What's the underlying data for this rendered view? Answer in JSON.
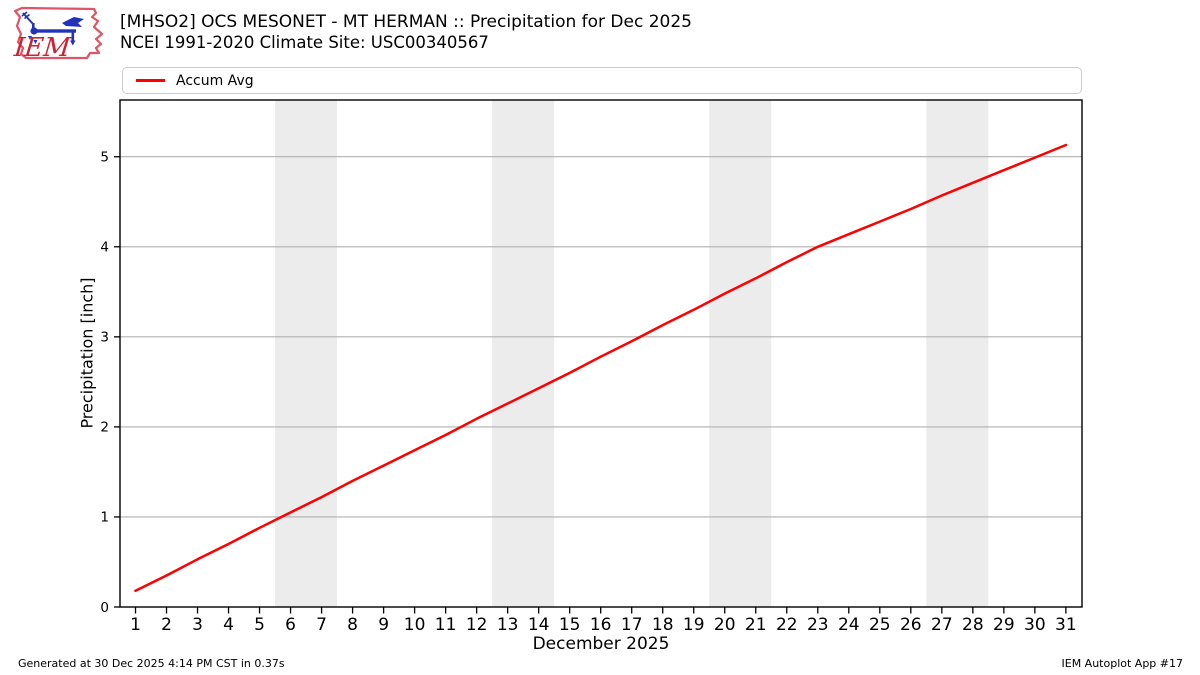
{
  "header": {
    "logo_text": "IEM"
  },
  "footer": {
    "left": "Generated at 30 Dec 2025 4:14 PM CST in 0.37s",
    "right": "IEM Autoplot App #17"
  },
  "chart_data": {
    "type": "line",
    "title": "[MHSO2] OCS MESONET - MT HERMAN :: Precipitation for Dec 2025",
    "subtitle": "NCEI 1991-2020 Climate Site: USC00340567",
    "xlabel": "December 2025",
    "ylabel": "Precipitation [inch]",
    "legend_position": "top",
    "grid": "horizontal",
    "xlim": [
      0.5,
      31.52
    ],
    "ylim": [
      0,
      5.63
    ],
    "xticks": [
      1,
      2,
      3,
      4,
      5,
      6,
      7,
      8,
      9,
      10,
      11,
      12,
      13,
      14,
      15,
      16,
      17,
      18,
      19,
      20,
      21,
      22,
      23,
      24,
      25,
      26,
      27,
      28,
      29,
      30,
      31
    ],
    "yticks": [
      0,
      1,
      2,
      3,
      4,
      5
    ],
    "x": [
      1,
      2,
      3,
      4,
      5,
      6,
      7,
      8,
      9,
      10,
      11,
      12,
      13,
      14,
      15,
      16,
      17,
      18,
      19,
      20,
      21,
      22,
      23,
      24,
      25,
      26,
      27,
      28,
      29,
      30,
      31
    ],
    "series": [
      {
        "name": "Accum Avg",
        "color": "#ff0000",
        "values": [
          0.18,
          0.35,
          0.53,
          0.7,
          0.88,
          1.05,
          1.22,
          1.4,
          1.57,
          1.74,
          1.91,
          2.09,
          2.26,
          2.43,
          2.6,
          2.78,
          2.95,
          3.13,
          3.3,
          3.48,
          3.65,
          3.83,
          4.0,
          4.14,
          4.28,
          4.42,
          4.57,
          4.71,
          4.85,
          4.99,
          5.13
        ]
      }
    ],
    "weekend_bands": [
      [
        5.5,
        7.5
      ],
      [
        12.5,
        14.5
      ],
      [
        19.5,
        21.5
      ],
      [
        26.5,
        28.5
      ]
    ],
    "band_color": "#ececec",
    "grid_color": "#b0b0b0",
    "frame_color": "#000000"
  }
}
